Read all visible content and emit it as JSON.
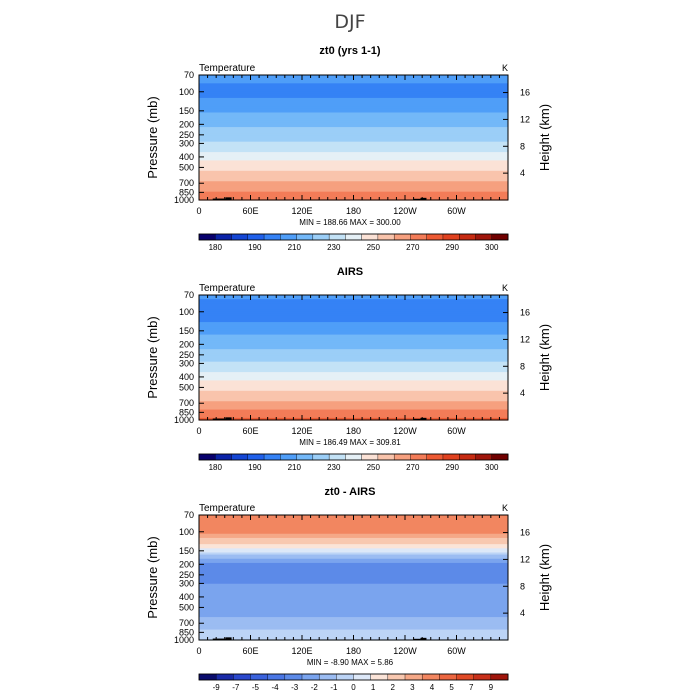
{
  "page": {
    "title": "DJF"
  },
  "colors": {
    "land": "#000000",
    "frame": "#000000"
  },
  "chart_data": [
    {
      "type": "heatmap",
      "title": "zt0 (yrs 1-1)",
      "left_label": "Temperature",
      "right_label": "K",
      "ylabel": "Pressure (mb)",
      "y2label": "Height (km)",
      "pressure_ticks": [
        70,
        100,
        150,
        200,
        250,
        300,
        400,
        500,
        700,
        850,
        1000
      ],
      "height_ticks": [
        16,
        12,
        8,
        4
      ],
      "x_ticks": [
        "0",
        "60E",
        "120E",
        "180",
        "120W",
        "60W"
      ],
      "xlim": [
        0,
        360
      ],
      "stats": "MIN = 188.66   MAX = 300.00",
      "min": 188.66,
      "max": 300.0,
      "colorbar": {
        "labels": [
          "180",
          "190",
          "210",
          "230",
          "250",
          "270",
          "290",
          "300"
        ],
        "colors": [
          "#08006d",
          "#0a23a8",
          "#1446d4",
          "#2060ea",
          "#3582f5",
          "#4f9ef8",
          "#73b8f8",
          "#9bcef7",
          "#c3e2f6",
          "#e5f0f6",
          "#fbe2d6",
          "#f9c4ac",
          "#f6a07f",
          "#f37c58",
          "#ed5a33",
          "#e0411f",
          "#c72b12",
          "#a0150b",
          "#700000"
        ],
        "bounds": [
          175,
          180,
          185,
          190,
          200,
          210,
          220,
          230,
          240,
          250,
          260,
          270,
          280,
          290,
          295,
          300
        ]
      },
      "profile": {
        "levels": [
          70,
          100,
          150,
          200,
          250,
          300,
          400,
          500,
          700,
          850,
          1000
        ],
        "values": [
          205,
          195,
          209,
          218,
          225,
          232,
          246,
          256,
          271,
          282,
          291
        ]
      }
    },
    {
      "type": "heatmap",
      "title": "AIRS",
      "left_label": "Temperature",
      "right_label": "K",
      "ylabel": "Pressure (mb)",
      "y2label": "Height (km)",
      "pressure_ticks": [
        70,
        100,
        150,
        200,
        250,
        300,
        400,
        500,
        700,
        850,
        1000
      ],
      "height_ticks": [
        16,
        12,
        8,
        4
      ],
      "x_ticks": [
        "0",
        "60E",
        "120E",
        "180",
        "120W",
        "60W"
      ],
      "xlim": [
        0,
        360
      ],
      "stats": "MIN = 186.49   MAX = 309.81",
      "min": 186.49,
      "max": 309.81,
      "colorbar": {
        "labels": [
          "180",
          "190",
          "210",
          "230",
          "250",
          "270",
          "290",
          "300"
        ],
        "colors": [
          "#08006d",
          "#0a23a8",
          "#1446d4",
          "#2060ea",
          "#3582f5",
          "#4f9ef8",
          "#73b8f8",
          "#9bcef7",
          "#c3e2f6",
          "#e5f0f6",
          "#fbe2d6",
          "#f9c4ac",
          "#f6a07f",
          "#f37c58",
          "#ed5a33",
          "#e0411f",
          "#c72b12",
          "#a0150b",
          "#700000"
        ],
        "bounds": [
          175,
          180,
          185,
          190,
          200,
          210,
          220,
          230,
          240,
          250,
          260,
          270,
          280,
          290,
          295,
          300
        ]
      },
      "profile": {
        "levels": [
          70,
          100,
          150,
          200,
          250,
          300,
          400,
          500,
          700,
          850,
          1000
        ],
        "values": [
          203,
          192,
          207,
          217,
          225,
          232,
          246,
          257,
          273,
          284,
          294
        ]
      }
    },
    {
      "type": "heatmap",
      "title": "zt0 - AIRS",
      "left_label": "Temperature",
      "right_label": "K",
      "ylabel": "Pressure (mb)",
      "y2label": "Height (km)",
      "pressure_ticks": [
        70,
        100,
        150,
        200,
        250,
        300,
        400,
        500,
        700,
        850,
        1000
      ],
      "height_ticks": [
        16,
        12,
        8,
        4
      ],
      "x_ticks": [
        "0",
        "60E",
        "120E",
        "180",
        "120W",
        "60W"
      ],
      "xlim": [
        0,
        360
      ],
      "stats": "MIN =   -8.90   MAX =    5.86",
      "min": -8.9,
      "max": 5.86,
      "colorbar": {
        "labels": [
          "-9",
          "-7",
          "-5",
          "-4",
          "-3",
          "-2",
          "-1",
          "0",
          "1",
          "2",
          "3",
          "4",
          "5",
          "7",
          "9"
        ],
        "colors": [
          "#0a0c6d",
          "#1a2aa8",
          "#2a48cc",
          "#3a62dc",
          "#4a76e4",
          "#5c8ae8",
          "#7aa4ee",
          "#9bbcf2",
          "#bcd4f6",
          "#dde8f8",
          "#fbe4d8",
          "#f8c8b0",
          "#f5a887",
          "#f28660",
          "#ec6640",
          "#e04a26",
          "#c8301a",
          "#a0150b"
        ],
        "bounds": [
          -11,
          -9,
          -7,
          -5,
          -4,
          -3,
          -2,
          -1,
          0,
          1,
          2,
          3,
          4,
          5,
          7,
          9,
          11
        ]
      },
      "profile": {
        "levels": [
          70,
          100,
          150,
          200,
          250,
          300,
          400,
          500,
          700,
          850,
          1000
        ],
        "values": [
          4.2,
          4.6,
          0.3,
          -3.5,
          -3.2,
          -3.0,
          -2.6,
          -2.4,
          -1.8,
          -0.8,
          -0.6
        ]
      }
    }
  ]
}
